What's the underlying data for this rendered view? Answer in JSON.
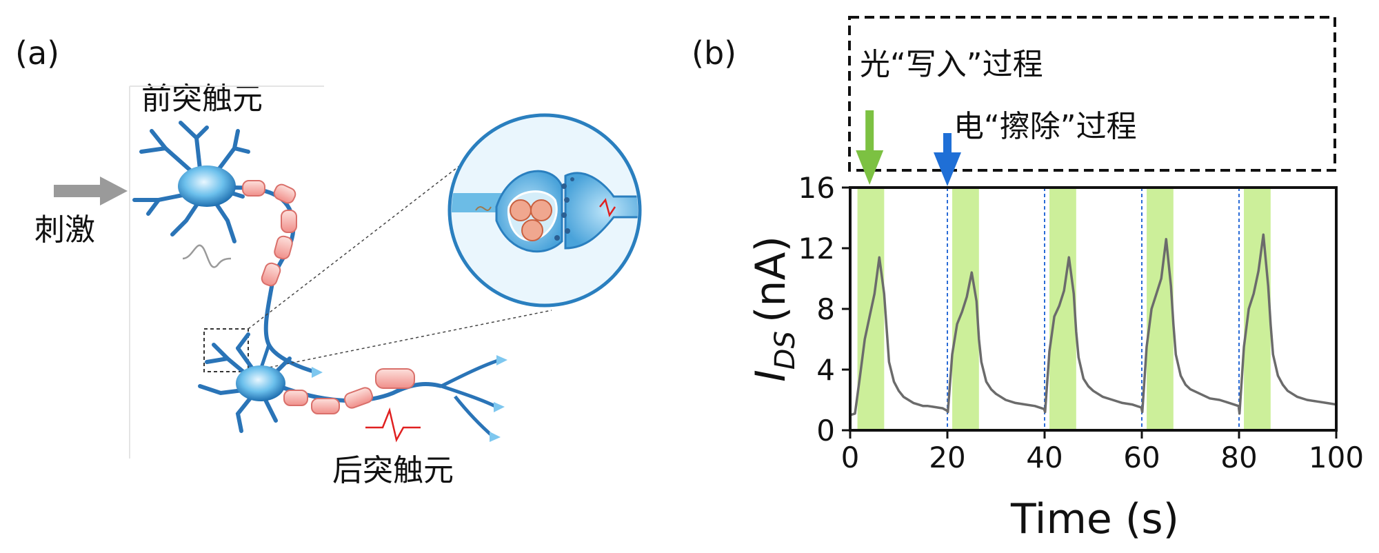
{
  "panel_a": {
    "label": "(a)",
    "presynaptic": "前突触元",
    "postsynaptic": "后突触元",
    "stimulus": "刺激"
  },
  "panel_b": {
    "label": "(b)",
    "legend_write": "光“写入”过程",
    "legend_erase": "电“擦除”过程"
  },
  "colors": {
    "pulse_fill": "#ccef9a",
    "trace": "#6b6b6b",
    "write_arrow": "#7cc142",
    "erase_arrow": "#1f6fd6",
    "erase_line": "#2a6bd6"
  },
  "chart_data": {
    "type": "line",
    "title": "",
    "xlabel": "Time (s)",
    "ylabel_main": "I",
    "ylabel_sub": "DS",
    "ylabel_unit": "(nA)",
    "xlim": [
      0,
      100
    ],
    "ylim": [
      0,
      16
    ],
    "x_ticks": [
      0,
      20,
      40,
      60,
      80,
      100
    ],
    "y_ticks": [
      0,
      4,
      8,
      12,
      16
    ],
    "light_pulses": [
      [
        1.5,
        7
      ],
      [
        21,
        26.5
      ],
      [
        41,
        46.5
      ],
      [
        61,
        66.5
      ],
      [
        81,
        86.5
      ]
    ],
    "erase_events": [
      20,
      40,
      60,
      80
    ],
    "write_arrow_x": 4,
    "erase_arrow_x": 20,
    "series": [
      {
        "name": "I_DS",
        "x": [
          0,
          1,
          2,
          3,
          4,
          5,
          6,
          7,
          8,
          9,
          10,
          11,
          12,
          13,
          14,
          15,
          16,
          17,
          18,
          19,
          19.9,
          20.1,
          21,
          22,
          23,
          24,
          25,
          26,
          26.5,
          27,
          28,
          29,
          30,
          32,
          34,
          36,
          38,
          39.9,
          40.1,
          41,
          42,
          43,
          44,
          45,
          46,
          46.5,
          47,
          48,
          49,
          50,
          52,
          54,
          56,
          58,
          59.9,
          60.1,
          61,
          62,
          63,
          64,
          65,
          66,
          66.5,
          67,
          68,
          69,
          70,
          72,
          74,
          76,
          78,
          79.9,
          80.1,
          81,
          82,
          83,
          84,
          85,
          86,
          86.5,
          87,
          88,
          89,
          90,
          92,
          94,
          96,
          98,
          100
        ],
        "values": [
          1.0,
          1.1,
          3.5,
          6.0,
          7.5,
          9.0,
          11.4,
          9.0,
          4.5,
          3.2,
          2.6,
          2.2,
          2.0,
          1.8,
          1.7,
          1.6,
          1.6,
          1.55,
          1.5,
          1.45,
          1.3,
          1.2,
          5.0,
          7.0,
          7.8,
          8.8,
          10.4,
          8.5,
          6.0,
          4.5,
          3.2,
          2.7,
          2.4,
          2.0,
          1.8,
          1.7,
          1.6,
          1.4,
          1.2,
          5.2,
          7.5,
          8.2,
          9.2,
          11.4,
          9.0,
          6.5,
          4.8,
          3.4,
          2.9,
          2.6,
          2.2,
          2.0,
          1.8,
          1.7,
          1.5,
          1.2,
          5.5,
          8.0,
          9.0,
          10.0,
          12.6,
          9.5,
          7.0,
          5.0,
          3.6,
          3.0,
          2.7,
          2.4,
          2.1,
          2.0,
          1.8,
          1.6,
          1.1,
          5.5,
          8.0,
          9.0,
          10.5,
          12.9,
          9.5,
          7.0,
          5.0,
          3.6,
          3.0,
          2.6,
          2.2,
          2.0,
          1.9,
          1.8,
          1.7
        ]
      }
    ]
  }
}
